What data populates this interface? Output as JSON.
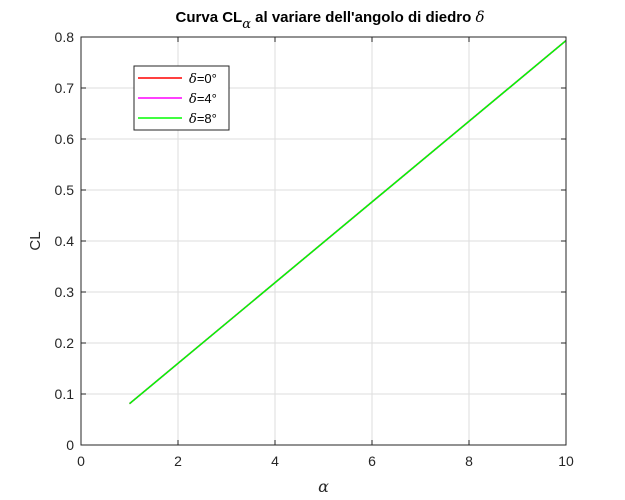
{
  "chart_data": {
    "type": "line",
    "title": {
      "prefix": "Curva CL",
      "subscript": "α",
      "middle": " al variare dell'angolo di diedro ",
      "symbol": "δ"
    },
    "xlabel": "α",
    "ylabel": "CL",
    "xlim": [
      0,
      10
    ],
    "ylim": [
      0,
      0.8
    ],
    "xticks": [
      0,
      2,
      4,
      6,
      8,
      10
    ],
    "xtick_labels": [
      "0",
      "2",
      "4",
      "6",
      "8",
      "10"
    ],
    "yticks": [
      0,
      0.1,
      0.2,
      0.3,
      0.4,
      0.5,
      0.6,
      0.7,
      0.8
    ],
    "ytick_labels": [
      "0",
      "0.1",
      "0.2",
      "0.3",
      "0.4",
      "0.5",
      "0.6",
      "0.7",
      "0.8"
    ],
    "grid": true,
    "legend_position": "top-left",
    "series": [
      {
        "name": "δ=0°",
        "legend_symbol": "δ",
        "legend_rest": "=0°",
        "color": "#ff0000",
        "x": [
          1,
          10
        ],
        "y": [
          0.081,
          0.793
        ]
      },
      {
        "name": "δ=4°",
        "legend_symbol": "δ",
        "legend_rest": "=4°",
        "color": "#ff00ff",
        "x": [
          1,
          10
        ],
        "y": [
          0.081,
          0.793
        ]
      },
      {
        "name": "δ=8°",
        "legend_symbol": "δ",
        "legend_rest": "=8°",
        "color": "#00ff00",
        "x": [
          1,
          10
        ],
        "y": [
          0.081,
          0.793
        ]
      }
    ]
  }
}
